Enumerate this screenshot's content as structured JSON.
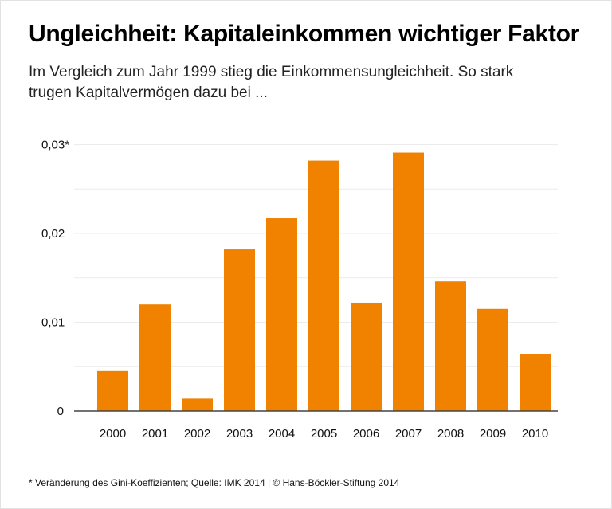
{
  "title": "Ungleichheit: Kapitaleinkommen wichtiger Faktor",
  "subtitle": "Im Vergleich zum Jahr 1999 stieg die Einkommensungleichheit. So stark trugen Kapitalvermögen dazu bei ...",
  "footer": "* Veränderung des Gini-Koeffizienten; Quelle: IMK 2014 | © Hans-Böckler-Stiftung 2014",
  "chart_data": {
    "type": "bar",
    "categories": [
      "2000",
      "2001",
      "2002",
      "2003",
      "2004",
      "2005",
      "2006",
      "2007",
      "2008",
      "2009",
      "2010"
    ],
    "values": [
      0.0045,
      0.012,
      0.0014,
      0.0182,
      0.0217,
      0.0282,
      0.0122,
      0.0291,
      0.0146,
      0.0115,
      0.0064
    ],
    "ylim": [
      0,
      0.03
    ],
    "yticks": [
      0,
      0.01,
      0.02,
      0.03
    ],
    "ytick_labels": [
      "0",
      "0,01",
      "0,02",
      "0,03*"
    ],
    "minor_grid_step": 0.005,
    "grid": true,
    "bar_color": "#f08200",
    "xlabel": "",
    "ylabel": ""
  }
}
